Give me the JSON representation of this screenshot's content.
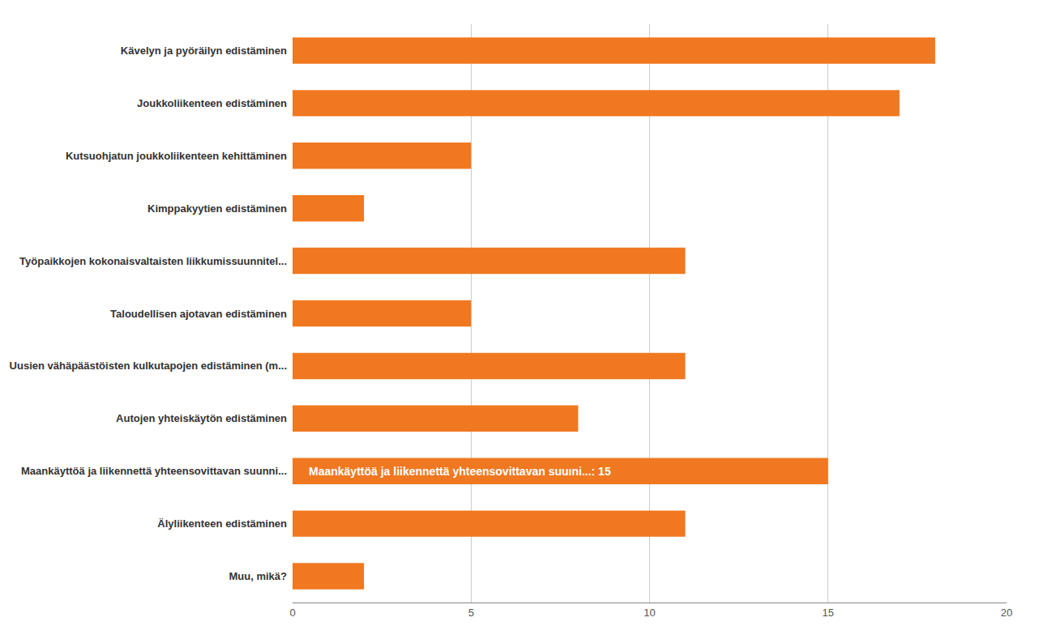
{
  "chart_data": {
    "type": "bar",
    "orientation": "horizontal",
    "categories": [
      "Muu, mikä?",
      "Älyliikenteen edistäminen",
      "Maankäyttöä ja liikennettä yhteensovittavan suunni...",
      "Autojen yhteiskäytön edistäminen",
      "Uusien vähäpäästöisten kulkutapojen edistäminen (m...",
      "Taloudellisen ajotavan edistäminen",
      "Työpaikkojen kokonaisvaltaisten liikkumissuunnitel...",
      "Kimppakyytien edistäminen",
      "Kutsuohjatun joukkoliikenteen kehittäminen",
      "Joukkoliikenteen edistäminen",
      "Kävelyn ja pyöräilyn edistäminen"
    ],
    "values": [
      2,
      11,
      15,
      8,
      11,
      5,
      11,
      2,
      5,
      17,
      18
    ],
    "color": "#F07820",
    "annotations": [
      {
        "text": "Maankäyttöä ja liikennettä yhteensovittavan suuıni...: 15",
        "category": "Maankäyttöä ja liikennettä yhteensovittavan suunni..."
      }
    ],
    "xlim": [
      0,
      20
    ],
    "xticks": [
      0,
      5,
      10,
      15,
      20
    ],
    "grid": true
  }
}
